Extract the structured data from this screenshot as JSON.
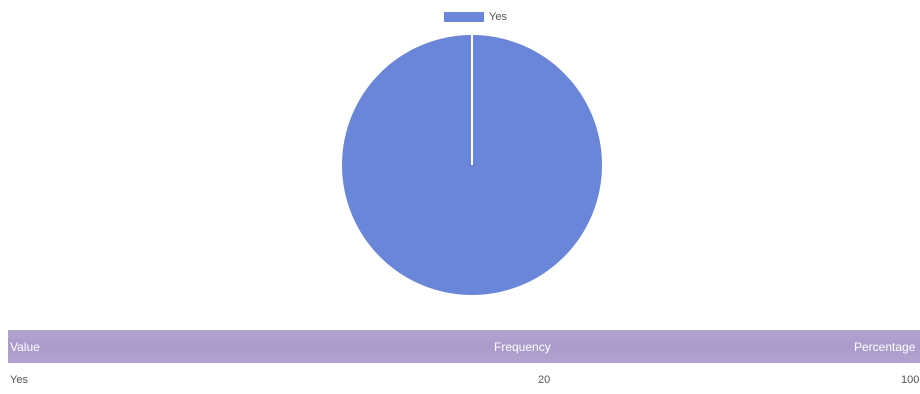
{
  "chart_data": {
    "type": "pie",
    "categories": [
      "Yes"
    ],
    "values": [
      20
    ],
    "legend": [
      "Yes"
    ],
    "legend_position": "top",
    "colors": [
      "#6a86d8"
    ]
  },
  "table": {
    "headers": {
      "value": "Value",
      "frequency": "Frequency",
      "percentage": "Percentage"
    },
    "rows": [
      {
        "value": "Yes",
        "frequency": "20",
        "percentage": "100"
      }
    ]
  },
  "colors": {
    "header_bg": "#ab9bcc",
    "pie_fill": "#6a86d8"
  }
}
